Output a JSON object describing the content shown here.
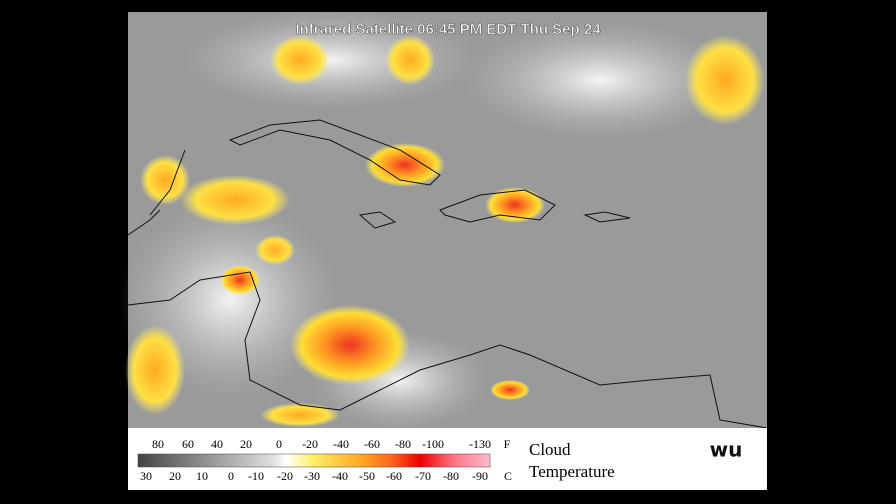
{
  "header": {
    "title": "Infrared Satellite 06:45 PM EDT Thu Sep 24"
  },
  "legend": {
    "fahrenheit": {
      "labels": [
        80,
        60,
        40,
        20,
        0,
        -20,
        -40,
        -60,
        -80,
        -100,
        -130
      ],
      "unit": "F"
    },
    "celsius": {
      "labels": [
        30,
        20,
        10,
        0,
        -10,
        -20,
        -30,
        -40,
        -50,
        -60,
        -70,
        -80,
        -90
      ],
      "unit": "C"
    },
    "title": [
      "Cloud",
      "Temperature"
    ]
  },
  "logo": "wu"
}
